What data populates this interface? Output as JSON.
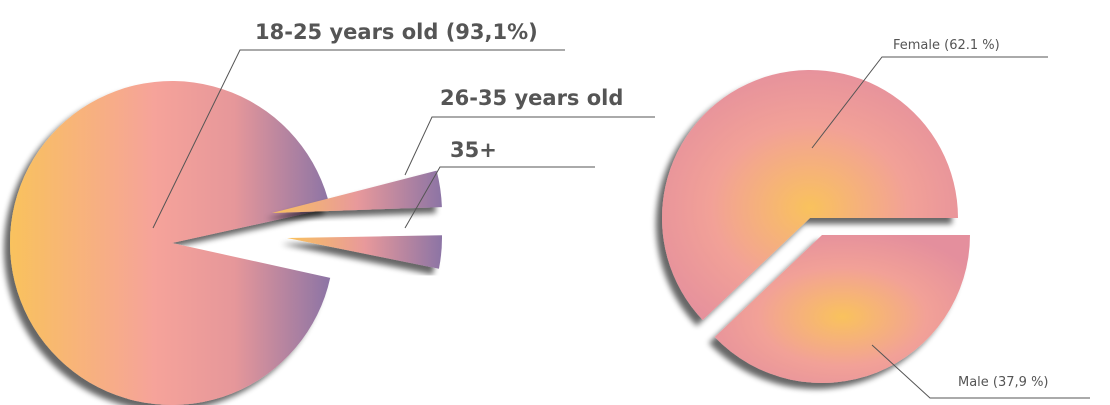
{
  "chart_data": [
    {
      "type": "pie",
      "exploded": true,
      "slices": [
        {
          "label": "18-25 years old (93,1%)",
          "value": 93.1
        },
        {
          "label": "26-35 years old",
          "value": 3.45
        },
        {
          "label": "35+",
          "value": 3.45
        }
      ]
    },
    {
      "type": "pie",
      "exploded": true,
      "slices": [
        {
          "label": "Female (62.1 %)",
          "value": 62.1
        },
        {
          "label": "Male (37,9 %)",
          "value": 37.9
        }
      ]
    }
  ],
  "colors": {
    "age_gradient": [
      "#f9c25d",
      "#f6a39a",
      "#e6979a",
      "#8c74a5"
    ],
    "gender_gradient": [
      "#f9c25d",
      "#f2a197",
      "#e8919c"
    ],
    "shadow": "#555555",
    "label": "#555555"
  }
}
